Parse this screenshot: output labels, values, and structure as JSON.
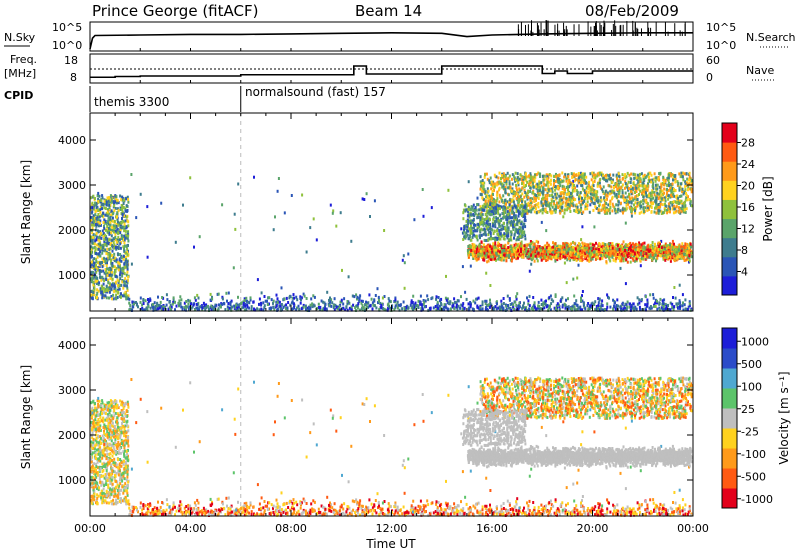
{
  "header": {
    "station": "Prince George (fitACF)",
    "beam": "Beam 14",
    "date": "08/Feb/2009"
  },
  "left_labels": {
    "nsky": "N.Sky",
    "freq": "Freq.",
    "freq_unit": "[MHz]",
    "cpid": "CPID"
  },
  "right_labels": {
    "nsearch": "N.Search",
    "nave": "Nave"
  },
  "cpid_segments": [
    {
      "name": "themis 3300",
      "start_hour": 0
    },
    {
      "name": "normalsound (fast) 157",
      "start_hour": 6
    }
  ],
  "colors": {
    "power": [
      "#1d1ed8",
      "#2a55b6",
      "#3e7c8e",
      "#5aa46a",
      "#8fc13c",
      "#ffd21f",
      "#ff9a1a",
      "#ff5a12",
      "#e3001b"
    ],
    "velocity": [
      "#1d1ed8",
      "#2b4cc9",
      "#4fa8d1",
      "#5cc46a",
      "#bfbfbf",
      "#ffd21f",
      "#ff9a1a",
      "#ff5a12",
      "#e3001b"
    ]
  },
  "chart_data": [
    {
      "type": "line",
      "panel": "nsky",
      "y_ticks": [
        "10^5",
        "10^0"
      ],
      "right_y_ticks": [
        "10^5",
        "10^0"
      ],
      "x": [
        0,
        0.1,
        0.2,
        2,
        4,
        6,
        8,
        10,
        12,
        14,
        15,
        16,
        18,
        20,
        22,
        24
      ],
      "series": [
        {
          "values": [
            0,
            2,
            2.5,
            2.6,
            2.7,
            2.7,
            2.8,
            2.9,
            3.0,
            2.9,
            2.3,
            2.6,
            2.8,
            2.9,
            3.0,
            3.0
          ]
        }
      ]
    },
    {
      "type": "line",
      "panel": "freq",
      "left_ticks": [
        "18",
        "8"
      ],
      "right_ticks": [
        "60",
        "0"
      ],
      "freq_mhz": {
        "x": [
          0,
          1,
          2,
          4,
          6,
          8,
          10,
          10.5,
          11,
          13,
          14,
          15,
          16,
          17,
          18,
          18.5,
          19,
          20,
          22,
          24
        ],
        "values": [
          9.5,
          9.8,
          10,
          10,
          10.5,
          10.5,
          10.5,
          14,
          10.8,
          10.8,
          14,
          14,
          14,
          14,
          11,
          12,
          11,
          12,
          12,
          12
        ]
      },
      "nave_reference": 28
    },
    {
      "type": "heatmap",
      "panel": "power",
      "xlabel": "",
      "ylabel": "Slant Range [km]",
      "yticks": [
        1000,
        2000,
        3000,
        4000
      ],
      "ylim": [
        200,
        4600
      ],
      "xlim": [
        0,
        24
      ],
      "colorbar_label": "Power [dB]",
      "colorbar_ticks": [
        "4",
        "8",
        "12",
        "16",
        "20",
        "24",
        "28"
      ]
    },
    {
      "type": "heatmap",
      "panel": "velocity",
      "xlabel": "Time UT",
      "ylabel": "Slant Range [km]",
      "yticks": [
        1000,
        2000,
        3000,
        4000
      ],
      "ylim": [
        200,
        4600
      ],
      "xlim": [
        0,
        24
      ],
      "x_tick_labels": [
        "00:00",
        "04:00",
        "08:00",
        "12:00",
        "16:00",
        "20:00",
        "00:00"
      ],
      "colorbar_label": "Velocity [m s⁻¹]",
      "colorbar_ticks": [
        "1000",
        "500",
        "100",
        "25",
        "-25",
        "-100",
        "-500",
        "-1000"
      ]
    }
  ]
}
